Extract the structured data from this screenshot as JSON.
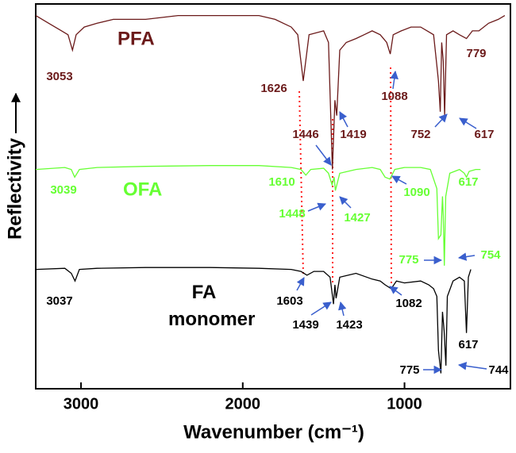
{
  "chart_data": {
    "type": "line",
    "xlabel": "Wavenumber (cm⁻¹)",
    "ylabel": "Reflectivity",
    "xlim": [
      3280,
      345
    ],
    "ylim": [
      0,
      100
    ],
    "xticks": [
      3000,
      2000,
      1000
    ],
    "series": [
      {
        "name": "PFA",
        "color": "#6b1a1a",
        "x": [
          3280,
          3200,
          3120,
          3080,
          3053,
          3030,
          2980,
          2900,
          2800,
          2600,
          2400,
          2200,
          2000,
          1900,
          1800,
          1700,
          1660,
          1626,
          1590,
          1500,
          1470,
          1446,
          1430,
          1419,
          1400,
          1360,
          1300,
          1250,
          1200,
          1150,
          1110,
          1088,
          1070,
          1020,
          960,
          900,
          860,
          820,
          800,
          790,
          779,
          770,
          760,
          752,
          740,
          700,
          660,
          617,
          580,
          540,
          480,
          420,
          380
        ],
        "values": [
          97,
          95,
          93,
          92,
          88,
          92,
          94,
          95,
          96,
          96,
          97,
          97,
          97,
          97,
          96,
          94,
          92,
          80,
          92,
          93,
          90,
          57,
          75,
          71,
          88,
          90,
          91,
          92,
          93,
          92,
          90,
          87,
          92,
          93,
          94,
          94,
          93,
          92,
          84,
          80,
          72,
          90,
          85,
          71,
          92,
          93,
          92,
          91,
          93,
          93,
          95,
          96,
          97
        ],
        "peaks": [
          3053,
          1626,
          1446,
          1419,
          1088,
          779,
          752,
          617
        ]
      },
      {
        "name": "OFA",
        "color": "#66ff33",
        "x": [
          3280,
          3100,
          3060,
          3039,
          3010,
          2900,
          2600,
          2200,
          1900,
          1700,
          1640,
          1610,
          1580,
          1500,
          1470,
          1448,
          1435,
          1427,
          1400,
          1300,
          1200,
          1150,
          1120,
          1090,
          1060,
          1000,
          900,
          840,
          800,
          790,
          775,
          765,
          760,
          754,
          745,
          720,
          660,
          630,
          617,
          600,
          560,
          530
        ],
        "values": [
          57,
          57.5,
          57,
          55,
          57,
          57.5,
          57.8,
          58,
          58,
          57.5,
          57,
          55.5,
          57,
          57.3,
          56,
          53,
          55,
          51.5,
          56,
          57,
          57.5,
          57,
          55,
          54.5,
          57,
          57.5,
          57.5,
          57,
          52,
          39,
          40,
          50,
          45,
          32,
          50,
          56,
          57,
          56,
          55,
          56.5,
          57,
          57
        ],
        "peaks": [
          3039,
          1610,
          1448,
          1427,
          1090,
          617,
          775,
          754
        ]
      },
      {
        "name": "FA monomer",
        "color": "#000000",
        "x": [
          3280,
          3100,
          3060,
          3037,
          3010,
          2900,
          2600,
          2200,
          1900,
          1700,
          1640,
          1603,
          1560,
          1500,
          1460,
          1439,
          1430,
          1423,
          1400,
          1300,
          1200,
          1150,
          1120,
          1082,
          1050,
          1000,
          900,
          850,
          820,
          800,
          790,
          775,
          765,
          755,
          744,
          735,
          700,
          660,
          630,
          617,
          605,
          590
        ],
        "values": [
          31,
          31.3,
          30,
          28,
          31,
          31.3,
          31.5,
          31.5,
          31.3,
          31,
          30.5,
          29.5,
          30.5,
          30.5,
          29,
          22,
          27,
          23.5,
          29,
          30,
          28.5,
          28,
          27,
          26,
          28,
          27.5,
          28,
          27,
          26,
          24,
          10,
          4,
          20,
          15,
          6,
          24,
          28,
          29,
          28,
          14.5,
          29,
          31
        ],
        "peaks": [
          3037,
          1603,
          1439,
          1423,
          1082,
          617,
          775,
          744
        ]
      }
    ]
  }
}
